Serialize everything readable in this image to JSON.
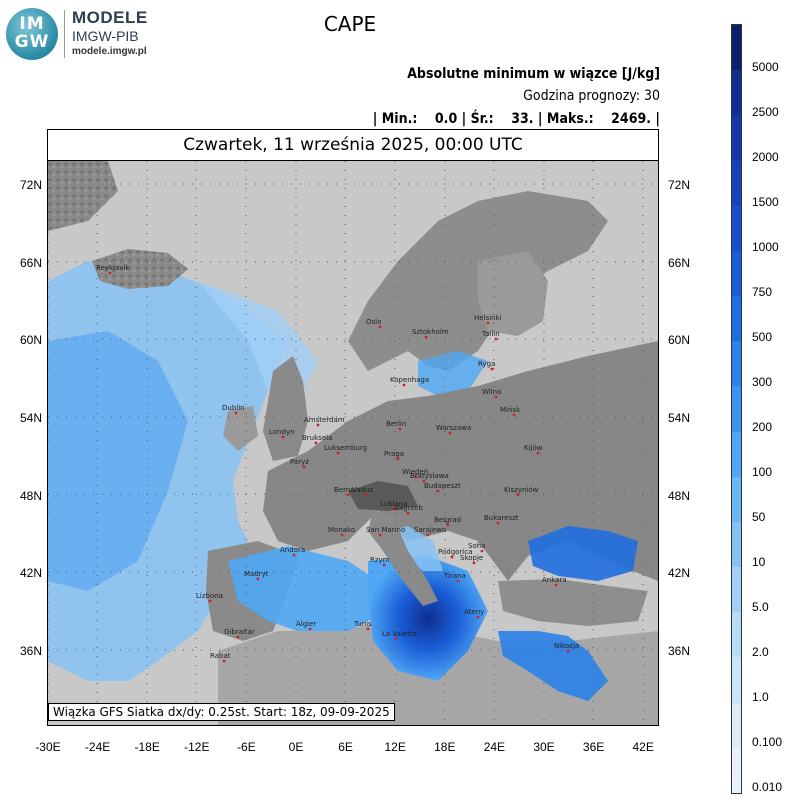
{
  "logo": {
    "circle_line1": "IM",
    "circle_line2": "GW",
    "title": "MODELE",
    "subtitle": "IMGW-PIB",
    "url": "modele.imgw.pl"
  },
  "map_title": "CAPE",
  "header": {
    "line1": "Absolutne minimum w wiązce [J/kg]",
    "line2": "Godzina prognozy: 30",
    "line3": "| Min.:    0.0 | Śr.:    33. | Maks.:    2469. |"
  },
  "date_label": "Czwartek, 11 września 2025, 00:00 UTC",
  "footer": "Wiązka GFS Siatka dx/dy: 0.25st. Start: 18z, 09-09-2025",
  "lat_labels": [
    "72N",
    "66N",
    "60N",
    "54N",
    "48N",
    "42N",
    "36N"
  ],
  "lon_labels": [
    "-30E",
    "-24E",
    "-18E",
    "-12E",
    "-6E",
    "0E",
    "6E",
    "12E",
    "18E",
    "24E",
    "30E",
    "36E",
    "42E"
  ],
  "legend": {
    "labels": [
      "5000",
      "2500",
      "2000",
      "1500",
      "1000",
      "750",
      "500",
      "300",
      "200",
      "100",
      "50",
      "10",
      "5.0",
      "2.0",
      "1.0",
      "0.100",
      "0.010"
    ],
    "colors": [
      "#0c1f6e",
      "#0f2e8f",
      "#1238a8",
      "#1443bc",
      "#1750cc",
      "#1a5ed8",
      "#1f6fe0",
      "#2a82ea",
      "#3b95f0",
      "#4fa7f5",
      "#69b5f5",
      "#86c2f5",
      "#a1cff6",
      "#b8dbf7",
      "#cbe4f8",
      "#dcecf9",
      "#e8f1fb"
    ]
  },
  "cities": [
    "Reykjavik",
    "Oslo",
    "Sztokholm",
    "Helsinki",
    "Tallin",
    "Ryga",
    "Kopenhaga",
    "Wilno",
    "Mińsk",
    "Dublin",
    "Amsterdam",
    "Londyn",
    "Berlin",
    "Warszawa",
    "Bruksela",
    "Luksemburg",
    "Paryż",
    "Praga",
    "Kijów",
    "Wiedeń",
    "Bratysława",
    "Budapeszt",
    "Berno",
    "Vaduz",
    "Kiszyniów",
    "Lublana",
    "Zagrzeb",
    "Monako",
    "Belgrad",
    "Bukareszt",
    "San Marino",
    "Sarajewo",
    "Andora",
    "Rzym",
    "Podgorica",
    "Sofia",
    "Skopje",
    "Madryt",
    "Tirana",
    "Ankara",
    "Lizbona",
    "Ateny",
    "Algier",
    "Tunis",
    "La Valetta",
    "Gibraltar",
    "Rabat",
    "Nikozja"
  ]
}
